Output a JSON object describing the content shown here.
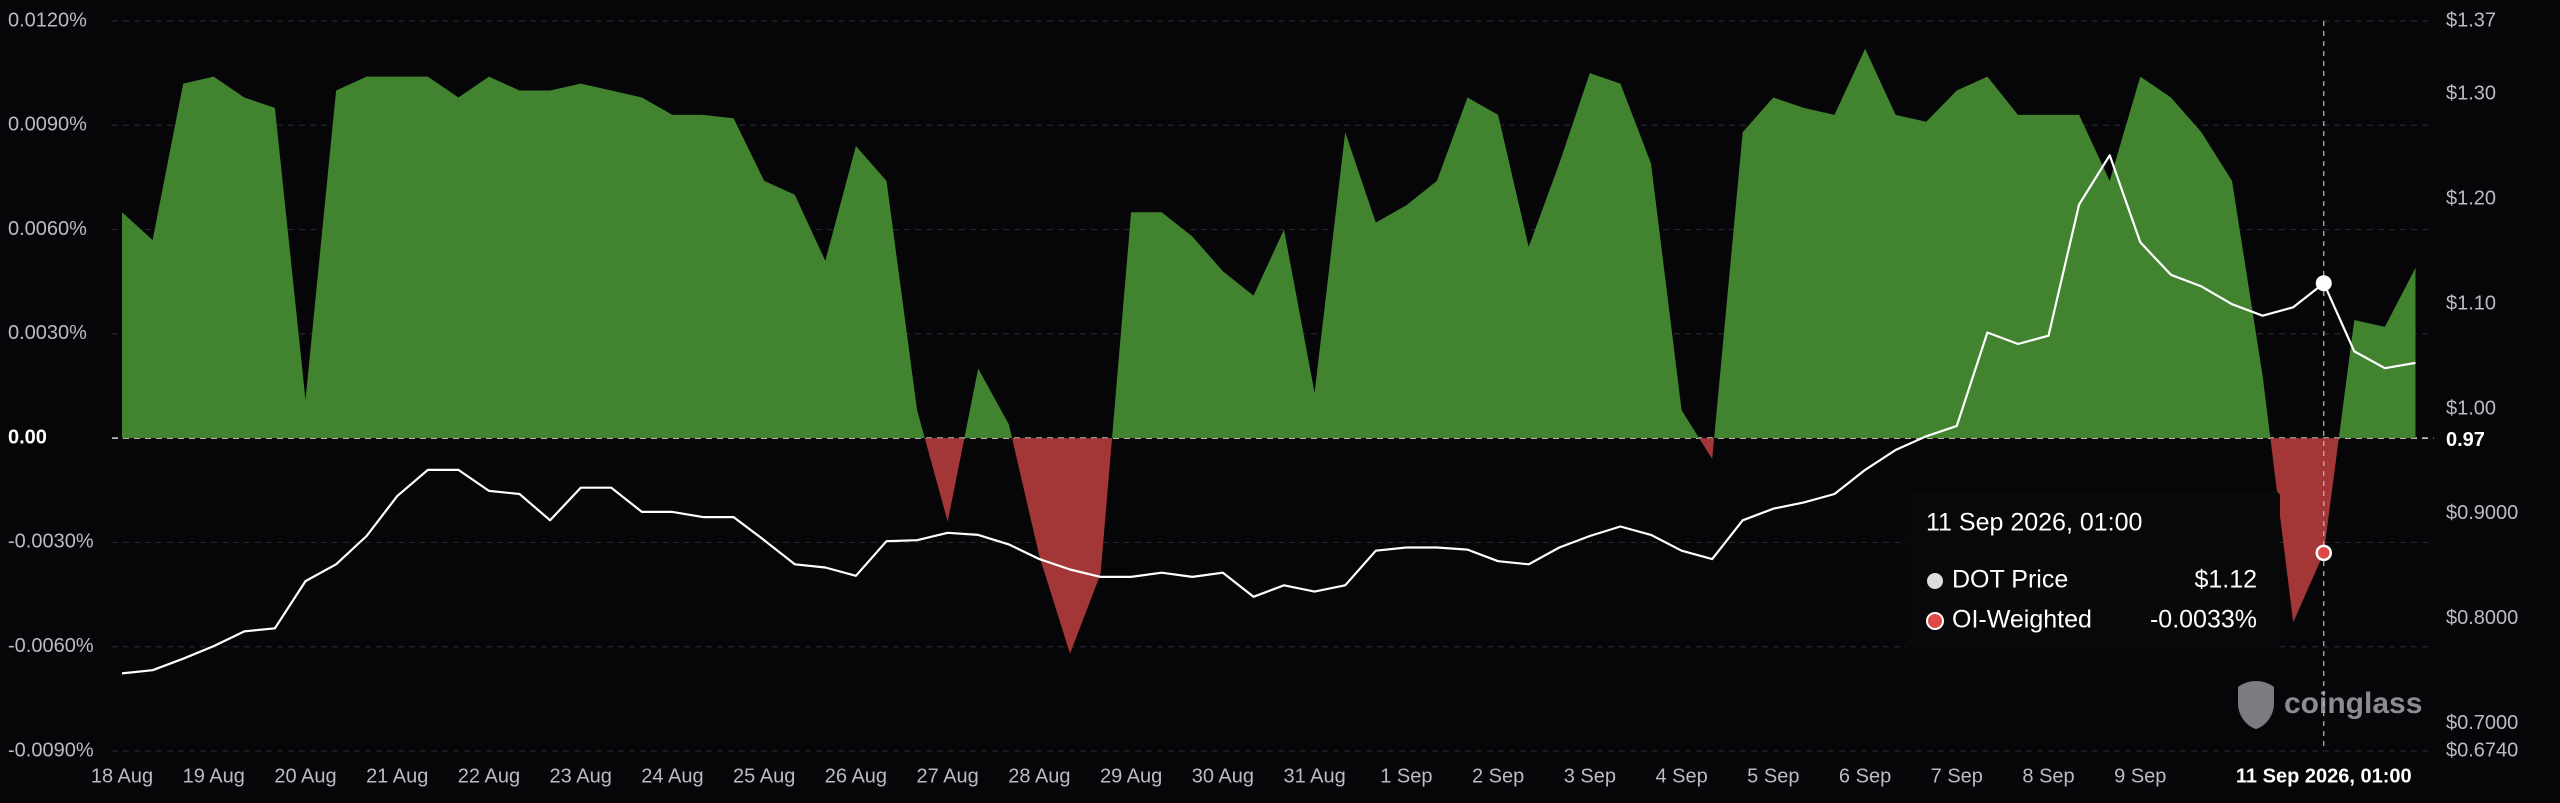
{
  "chart_data": {
    "type": "combo",
    "categories": [
      "18 Aug",
      null,
      null,
      "19 Aug",
      null,
      null,
      "20 Aug",
      null,
      null,
      "21 Aug",
      null,
      null,
      "22 Aug",
      null,
      null,
      "23 Aug",
      null,
      null,
      "24 Aug",
      null,
      null,
      "25 Aug",
      null,
      null,
      "26 Aug",
      null,
      null,
      "27 Aug",
      null,
      null,
      "28 Aug",
      null,
      null,
      "29 Aug",
      null,
      null,
      "30 Aug",
      null,
      null,
      "31 Aug",
      null,
      null,
      "1 Sep",
      null,
      null,
      "2 Sep",
      null,
      null,
      "3 Sep",
      null,
      null,
      "4 Sep",
      null,
      null,
      "5 Sep",
      null,
      null,
      "6 Sep",
      null,
      null,
      "7 Sep",
      null,
      null,
      "8 Sep",
      null,
      null,
      "9 Sep",
      null,
      null,
      null,
      null,
      null,
      "11 Sep 2026, 01:00",
      null,
      null,
      null
    ],
    "series": [
      {
        "name": "OI-Weighted",
        "type": "area",
        "color": "#41832f",
        "negative_color": "#a33636",
        "values": [
          0.0065,
          0.0057,
          0.0102,
          0.0104,
          0.0098,
          0.0095,
          0.0011,
          0.01,
          0.0104,
          0.0104,
          0.0104,
          0.0098,
          0.0104,
          0.01,
          0.01,
          0.0102,
          0.01,
          0.0098,
          0.0093,
          0.0093,
          0.0092,
          0.0074,
          0.007,
          0.0051,
          0.0084,
          0.0074,
          0.0008,
          -0.0024,
          0.002,
          0.0004,
          -0.0034,
          -0.0062,
          -0.0039,
          0.0065,
          0.0065,
          0.0058,
          0.0048,
          0.0041,
          0.006,
          0.0013,
          0.0088,
          0.0062,
          0.0067,
          0.0074,
          0.0098,
          0.0093,
          0.0055,
          0.0079,
          0.0105,
          0.0102,
          0.0079,
          0.0008,
          -0.0006,
          0.0088,
          0.0098,
          0.0095,
          0.0093,
          0.0112,
          0.0093,
          0.0091,
          0.01,
          0.0104,
          0.0093,
          0.0093,
          0.0093,
          0.0074,
          0.0104,
          0.0098,
          0.0088,
          0.0074,
          0.0018,
          -0.0053,
          -0.0033,
          0.0034,
          0.0032,
          0.0049
        ]
      },
      {
        "name": "DOT Price",
        "type": "line",
        "axis": "y2",
        "color": "#ffffff",
        "values": [
          0.748,
          0.751,
          0.762,
          0.774,
          0.788,
          0.791,
          0.836,
          0.852,
          0.879,
          0.917,
          0.942,
          0.942,
          0.922,
          0.919,
          0.894,
          0.925,
          0.925,
          0.902,
          0.902,
          0.897,
          0.897,
          0.875,
          0.852,
          0.849,
          0.841,
          0.874,
          0.875,
          0.882,
          0.88,
          0.871,
          0.857,
          0.847,
          0.84,
          0.84,
          0.844,
          0.84,
          0.844,
          0.821,
          0.832,
          0.826,
          0.832,
          0.865,
          0.868,
          0.868,
          0.866,
          0.855,
          0.852,
          0.868,
          0.879,
          0.888,
          0.88,
          0.865,
          0.857,
          0.894,
          0.905,
          0.911,
          0.919,
          0.942,
          0.961,
          0.974,
          0.984,
          1.073,
          1.062,
          1.07,
          1.195,
          1.242,
          1.159,
          1.128,
          1.117,
          1.1,
          1.089,
          1.097,
          1.12,
          1.055,
          1.039,
          1.044
        ]
      }
    ],
    "ylim": [
      -0.009,
      0.012
    ],
    "yticks": [
      {
        "value": -0.009,
        "label": "-0.0090%"
      },
      {
        "value": -0.006,
        "label": "-0.0060%"
      },
      {
        "value": -0.003,
        "label": "-0.0030%"
      },
      {
        "value": 0,
        "label": "0.00"
      },
      {
        "value": 0.003,
        "label": "0.0030%"
      },
      {
        "value": 0.006,
        "label": "0.0060%"
      },
      {
        "value": 0.009,
        "label": "0.0090%"
      },
      {
        "value": 0.012,
        "label": "0.0120%"
      }
    ],
    "y2lim": [
      0.674,
      1.37
    ],
    "y2ticks": [
      {
        "value": 0.674,
        "label": "$0.6740"
      },
      {
        "value": 0.7,
        "label": "$0.7000"
      },
      {
        "value": 0.8,
        "label": "$0.8000"
      },
      {
        "value": 0.9,
        "label": "$0.9000"
      },
      0.97,
      {
        "value": 1.0,
        "label": "$1.00"
      },
      {
        "value": 1.1,
        "label": "$1.10"
      },
      {
        "value": 1.2,
        "label": "$1.20"
      },
      {
        "value": 1.3,
        "label": "$1.30"
      },
      {
        "value": 1.37,
        "label": "$1.37"
      }
    ],
    "grid": true,
    "tooltip": {
      "title": "11 Sep 2026, 01:00",
      "values": [
        "$1.12",
        "-0.0033%"
      ]
    },
    "watermark": "coinglass"
  }
}
